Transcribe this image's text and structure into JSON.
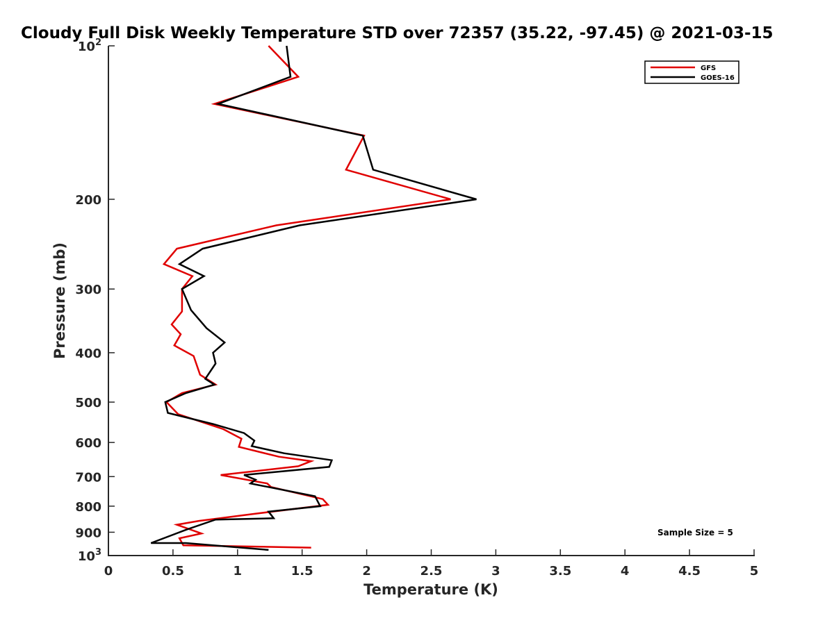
{
  "chart_data": {
    "type": "line",
    "title": "Cloudy Full Disk Weekly Temperature STD over 72357 (35.22, -97.45) @ 2021-03-15",
    "xlabel": "Temperature (K)",
    "ylabel": "Pressure (mb)",
    "xlim": [
      0,
      5
    ],
    "ylim": [
      100,
      1000
    ],
    "y_scale": "log",
    "y_reversed": true,
    "grid": false,
    "x_ticks": [
      "0",
      "0.5",
      "1",
      "1.5",
      "2",
      "2.5",
      "3",
      "3.5",
      "4",
      "4.5",
      "5"
    ],
    "y_ticks": [
      {
        "value": 100,
        "base": "10",
        "exp": "2"
      },
      {
        "value": 200,
        "label": "200"
      },
      {
        "value": 300,
        "label": "300"
      },
      {
        "value": 400,
        "label": "400"
      },
      {
        "value": 500,
        "label": "500"
      },
      {
        "value": 600,
        "label": "600"
      },
      {
        "value": 700,
        "label": "700"
      },
      {
        "value": 800,
        "label": "800"
      },
      {
        "value": 900,
        "label": "900"
      },
      {
        "value": 1000,
        "base": "10",
        "exp": "3"
      }
    ],
    "legend_position": "top-right",
    "annotation": "Sample Size = 5",
    "series": [
      {
        "name": "GFS",
        "color": "#e00000",
        "points": [
          [
            1.24,
            100
          ],
          [
            1.47,
            115
          ],
          [
            0.82,
            130
          ],
          [
            1.98,
            150
          ],
          [
            1.84,
            175
          ],
          [
            2.65,
            200
          ],
          [
            1.3,
            225
          ],
          [
            0.53,
            250
          ],
          [
            0.43,
            268
          ],
          [
            0.65,
            283
          ],
          [
            0.57,
            300
          ],
          [
            0.57,
            332
          ],
          [
            0.49,
            352
          ],
          [
            0.56,
            368
          ],
          [
            0.51,
            387
          ],
          [
            0.66,
            406
          ],
          [
            0.71,
            442
          ],
          [
            0.83,
            462
          ],
          [
            0.57,
            480
          ],
          [
            0.45,
            500
          ],
          [
            0.54,
            528
          ],
          [
            0.89,
            565
          ],
          [
            1.03,
            590
          ],
          [
            1.01,
            612
          ],
          [
            1.32,
            640
          ],
          [
            1.57,
            653
          ],
          [
            1.47,
            668
          ],
          [
            0.87,
            695
          ],
          [
            1.23,
            722
          ],
          [
            1.26,
            734
          ],
          [
            1.66,
            775
          ],
          [
            1.7,
            795
          ],
          [
            1.1,
            830
          ],
          [
            0.7,
            855
          ],
          [
            0.53,
            870
          ],
          [
            0.72,
            905
          ],
          [
            0.55,
            925
          ],
          [
            0.58,
            955
          ],
          [
            1.57,
            965
          ]
        ]
      },
      {
        "name": "GOES-16",
        "color": "#000000",
        "points": [
          [
            1.38,
            100
          ],
          [
            1.41,
            115
          ],
          [
            0.85,
            130
          ],
          [
            1.97,
            150
          ],
          [
            2.05,
            175
          ],
          [
            2.85,
            200
          ],
          [
            1.48,
            225
          ],
          [
            0.73,
            250
          ],
          [
            0.55,
            268
          ],
          [
            0.74,
            283
          ],
          [
            0.57,
            300
          ],
          [
            0.64,
            330
          ],
          [
            0.76,
            358
          ],
          [
            0.9,
            382
          ],
          [
            0.81,
            400
          ],
          [
            0.83,
            420
          ],
          [
            0.75,
            450
          ],
          [
            0.82,
            462
          ],
          [
            0.6,
            480
          ],
          [
            0.44,
            500
          ],
          [
            0.46,
            525
          ],
          [
            0.81,
            552
          ],
          [
            1.05,
            575
          ],
          [
            1.13,
            595
          ],
          [
            1.11,
            610
          ],
          [
            1.36,
            630
          ],
          [
            1.73,
            650
          ],
          [
            1.71,
            670
          ],
          [
            1.05,
            695
          ],
          [
            1.14,
            710
          ],
          [
            1.1,
            722
          ],
          [
            1.6,
            765
          ],
          [
            1.64,
            800
          ],
          [
            1.24,
            820
          ],
          [
            1.28,
            845
          ],
          [
            0.83,
            850
          ],
          [
            0.6,
            890
          ],
          [
            0.33,
            945
          ],
          [
            0.6,
            945
          ],
          [
            1.24,
            975
          ]
        ]
      }
    ]
  }
}
